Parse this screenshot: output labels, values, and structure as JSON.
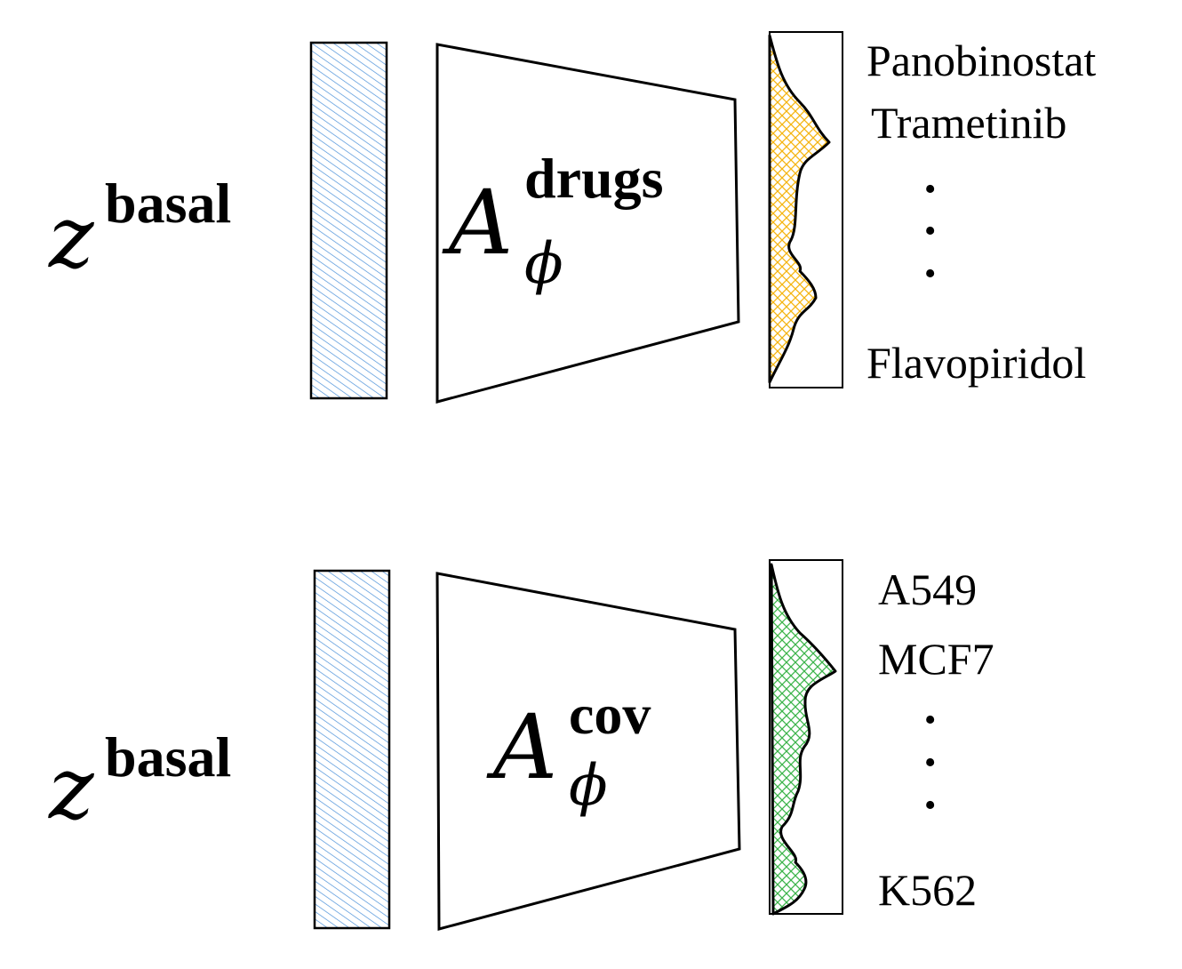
{
  "panels": [
    {
      "id": "drugs",
      "input_symbol": "z",
      "input_superscript": "basal",
      "adversary_symbol": "A",
      "adversary_superscript": "drugs",
      "adversary_subscript": "ϕ",
      "distribution_color": "#f5b40f",
      "labels": [
        "Panobinostat",
        "Trametinib",
        "Flavopiridol"
      ],
      "ellipsis": [
        "•",
        "•",
        "•"
      ]
    },
    {
      "id": "cov",
      "input_symbol": "z",
      "input_superscript": "basal",
      "adversary_symbol": "A",
      "adversary_superscript": "cov",
      "adversary_subscript": "ϕ",
      "distribution_color": "#3cb44b",
      "labels": [
        "A549",
        "MCF7",
        "K562"
      ],
      "ellipsis": [
        "•",
        "•",
        "•"
      ]
    }
  ],
  "colors": {
    "latent_fill": "#4a90d9",
    "outline": "#000000"
  }
}
